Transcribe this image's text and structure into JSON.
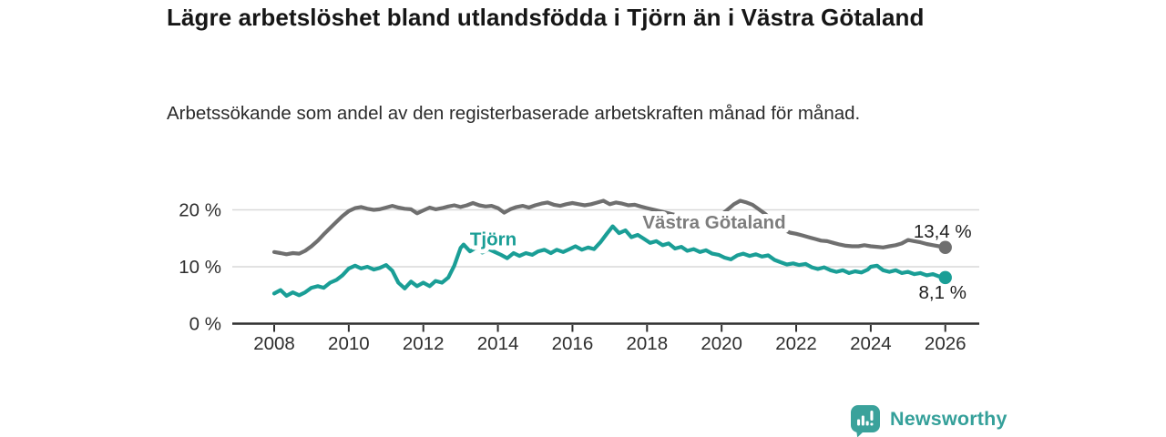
{
  "header": {
    "title": "Lägre arbetslöshet bland utlandsfödda i Tjörn än i Västra Götaland",
    "subtitle": "Arbetssökande som andel av den registerbaserade arbetskraften månad för månad."
  },
  "footer": {
    "brand": "Newsworthy",
    "logo_icon": "bar-chart-speech-bubble-icon"
  },
  "colors": {
    "tjorn_line": "#1a9e96",
    "vastra_line": "#6f6f6f",
    "vastra_label": "#7d7d7d",
    "axis": "#2e2e2e",
    "gridline": "#d9d9d9",
    "tick_text": "#2e2e2e",
    "value_label_text": "#1f1f1f",
    "halo": "#ffffff",
    "brand_teal": "#3aa29b"
  },
  "chart_data": {
    "type": "line",
    "title": "Lägre arbetslöshet bland utlandsfödda i Tjörn än i Västra Götaland",
    "subtitle": "Arbetssökande som andel av den registerbaserade arbetskraften månad för månad.",
    "xlabel": "",
    "ylabel": "",
    "grid": "horizontal",
    "xlim": [
      2006.9,
      2027.0
    ],
    "ylim": [
      0,
      22.8
    ],
    "x_ticks": [
      2008,
      2010,
      2012,
      2014,
      2016,
      2018,
      2020,
      2022,
      2024,
      2026
    ],
    "y_ticks": [
      {
        "value": 0,
        "label": "0 %"
      },
      {
        "value": 10,
        "label": "10 %"
      },
      {
        "value": 20,
        "label": "20 %"
      }
    ],
    "series": [
      {
        "name": "Västra Götaland",
        "slug": "vastra-gotaland",
        "color": "#6f6f6f",
        "end_value": 13.4,
        "end_label": "13,4 %",
        "points": [
          [
            2008.0,
            12.6
          ],
          [
            2008.17,
            12.4
          ],
          [
            2008.33,
            12.2
          ],
          [
            2008.5,
            12.4
          ],
          [
            2008.67,
            12.3
          ],
          [
            2008.83,
            12.8
          ],
          [
            2009.0,
            13.6
          ],
          [
            2009.17,
            14.6
          ],
          [
            2009.33,
            15.7
          ],
          [
            2009.5,
            16.8
          ],
          [
            2009.67,
            17.9
          ],
          [
            2009.83,
            18.9
          ],
          [
            2010.0,
            19.8
          ],
          [
            2010.17,
            20.3
          ],
          [
            2010.33,
            20.5
          ],
          [
            2010.5,
            20.2
          ],
          [
            2010.67,
            20.0
          ],
          [
            2010.83,
            20.1
          ],
          [
            2011.0,
            20.4
          ],
          [
            2011.17,
            20.7
          ],
          [
            2011.33,
            20.4
          ],
          [
            2011.5,
            20.2
          ],
          [
            2011.67,
            20.1
          ],
          [
            2011.83,
            19.4
          ],
          [
            2012.0,
            19.9
          ],
          [
            2012.17,
            20.4
          ],
          [
            2012.33,
            20.1
          ],
          [
            2012.5,
            20.3
          ],
          [
            2012.67,
            20.6
          ],
          [
            2012.83,
            20.8
          ],
          [
            2013.0,
            20.5
          ],
          [
            2013.17,
            20.8
          ],
          [
            2013.33,
            21.2
          ],
          [
            2013.5,
            20.8
          ],
          [
            2013.67,
            20.6
          ],
          [
            2013.83,
            20.7
          ],
          [
            2014.0,
            20.3
          ],
          [
            2014.17,
            19.5
          ],
          [
            2014.33,
            20.1
          ],
          [
            2014.5,
            20.5
          ],
          [
            2014.67,
            20.7
          ],
          [
            2014.83,
            20.4
          ],
          [
            2015.0,
            20.8
          ],
          [
            2015.17,
            21.1
          ],
          [
            2015.33,
            21.3
          ],
          [
            2015.5,
            20.9
          ],
          [
            2015.67,
            20.7
          ],
          [
            2015.83,
            21.0
          ],
          [
            2016.0,
            21.2
          ],
          [
            2016.17,
            21.0
          ],
          [
            2016.33,
            20.8
          ],
          [
            2016.5,
            21.0
          ],
          [
            2016.67,
            21.3
          ],
          [
            2016.83,
            21.6
          ],
          [
            2017.0,
            21.0
          ],
          [
            2017.17,
            21.3
          ],
          [
            2017.33,
            21.1
          ],
          [
            2017.5,
            20.8
          ],
          [
            2017.67,
            20.9
          ],
          [
            2017.83,
            20.6
          ],
          [
            2018.0,
            20.3
          ],
          [
            2018.25,
            19.9
          ],
          [
            2018.5,
            19.5
          ],
          [
            2018.75,
            19.1
          ],
          [
            2019.0,
            18.8
          ],
          [
            2019.25,
            18.5
          ],
          [
            2019.5,
            18.3
          ],
          [
            2019.75,
            18.6
          ],
          [
            2020.0,
            19.2
          ],
          [
            2020.17,
            20.1
          ],
          [
            2020.33,
            21.0
          ],
          [
            2020.5,
            21.6
          ],
          [
            2020.67,
            21.3
          ],
          [
            2020.83,
            20.9
          ],
          [
            2021.0,
            20.1
          ],
          [
            2021.17,
            19.3
          ],
          [
            2021.33,
            18.3
          ],
          [
            2021.5,
            17.2
          ],
          [
            2021.67,
            16.5
          ],
          [
            2021.83,
            16.0
          ],
          [
            2022.0,
            15.8
          ],
          [
            2022.17,
            15.5
          ],
          [
            2022.33,
            15.2
          ],
          [
            2022.5,
            14.9
          ],
          [
            2022.67,
            14.6
          ],
          [
            2022.83,
            14.5
          ],
          [
            2023.0,
            14.2
          ],
          [
            2023.17,
            13.9
          ],
          [
            2023.33,
            13.7
          ],
          [
            2023.5,
            13.6
          ],
          [
            2023.67,
            13.6
          ],
          [
            2023.83,
            13.8
          ],
          [
            2024.0,
            13.6
          ],
          [
            2024.17,
            13.5
          ],
          [
            2024.33,
            13.4
          ],
          [
            2024.5,
            13.6
          ],
          [
            2024.67,
            13.8
          ],
          [
            2024.83,
            14.1
          ],
          [
            2025.0,
            14.7
          ],
          [
            2025.17,
            14.5
          ],
          [
            2025.33,
            14.3
          ],
          [
            2025.5,
            14.0
          ],
          [
            2025.67,
            13.8
          ],
          [
            2025.83,
            13.6
          ],
          [
            2026.0,
            13.4
          ]
        ]
      },
      {
        "name": "Tjörn",
        "slug": "tjorn",
        "color": "#1a9e96",
        "end_value": 8.1,
        "end_label": "8,1 %",
        "points": [
          [
            2008.0,
            5.3
          ],
          [
            2008.17,
            5.9
          ],
          [
            2008.33,
            4.9
          ],
          [
            2008.5,
            5.5
          ],
          [
            2008.67,
            5.0
          ],
          [
            2008.83,
            5.5
          ],
          [
            2009.0,
            6.3
          ],
          [
            2009.17,
            6.6
          ],
          [
            2009.33,
            6.3
          ],
          [
            2009.5,
            7.2
          ],
          [
            2009.67,
            7.7
          ],
          [
            2009.83,
            8.5
          ],
          [
            2010.0,
            9.7
          ],
          [
            2010.17,
            10.2
          ],
          [
            2010.33,
            9.7
          ],
          [
            2010.5,
            10.0
          ],
          [
            2010.67,
            9.5
          ],
          [
            2010.83,
            9.8
          ],
          [
            2011.0,
            10.3
          ],
          [
            2011.17,
            9.3
          ],
          [
            2011.33,
            7.2
          ],
          [
            2011.5,
            6.2
          ],
          [
            2011.67,
            7.4
          ],
          [
            2011.83,
            6.6
          ],
          [
            2012.0,
            7.2
          ],
          [
            2012.17,
            6.6
          ],
          [
            2012.33,
            7.5
          ],
          [
            2012.5,
            7.2
          ],
          [
            2012.67,
            8.1
          ],
          [
            2012.83,
            10.2
          ],
          [
            2013.0,
            13.3
          ],
          [
            2013.08,
            13.9
          ],
          [
            2013.25,
            12.7
          ],
          [
            2013.42,
            13.4
          ],
          [
            2013.58,
            12.5
          ],
          [
            2013.75,
            13.1
          ],
          [
            2013.92,
            12.6
          ],
          [
            2014.08,
            12.1
          ],
          [
            2014.25,
            11.5
          ],
          [
            2014.42,
            12.4
          ],
          [
            2014.58,
            11.9
          ],
          [
            2014.75,
            12.4
          ],
          [
            2014.92,
            12.1
          ],
          [
            2015.08,
            12.7
          ],
          [
            2015.25,
            13.0
          ],
          [
            2015.42,
            12.4
          ],
          [
            2015.58,
            13.0
          ],
          [
            2015.75,
            12.6
          ],
          [
            2015.92,
            13.1
          ],
          [
            2016.08,
            13.6
          ],
          [
            2016.25,
            13.0
          ],
          [
            2016.42,
            13.4
          ],
          [
            2016.58,
            13.1
          ],
          [
            2016.75,
            14.3
          ],
          [
            2016.92,
            15.8
          ],
          [
            2017.08,
            17.1
          ],
          [
            2017.25,
            15.9
          ],
          [
            2017.42,
            16.4
          ],
          [
            2017.58,
            15.2
          ],
          [
            2017.75,
            15.6
          ],
          [
            2017.92,
            14.9
          ],
          [
            2018.08,
            14.2
          ],
          [
            2018.25,
            14.5
          ],
          [
            2018.42,
            13.8
          ],
          [
            2018.58,
            14.1
          ],
          [
            2018.75,
            13.2
          ],
          [
            2018.92,
            13.5
          ],
          [
            2019.08,
            12.8
          ],
          [
            2019.25,
            13.1
          ],
          [
            2019.42,
            12.6
          ],
          [
            2019.58,
            12.9
          ],
          [
            2019.75,
            12.3
          ],
          [
            2019.92,
            12.1
          ],
          [
            2020.08,
            11.6
          ],
          [
            2020.25,
            11.3
          ],
          [
            2020.42,
            12.0
          ],
          [
            2020.58,
            12.3
          ],
          [
            2020.75,
            11.9
          ],
          [
            2020.92,
            12.2
          ],
          [
            2021.08,
            11.8
          ],
          [
            2021.25,
            12.0
          ],
          [
            2021.42,
            11.2
          ],
          [
            2021.58,
            10.8
          ],
          [
            2021.75,
            10.4
          ],
          [
            2021.92,
            10.6
          ],
          [
            2022.08,
            10.3
          ],
          [
            2022.25,
            10.5
          ],
          [
            2022.42,
            9.9
          ],
          [
            2022.58,
            9.6
          ],
          [
            2022.75,
            9.9
          ],
          [
            2022.92,
            9.4
          ],
          [
            2023.08,
            9.1
          ],
          [
            2023.25,
            9.4
          ],
          [
            2023.42,
            8.9
          ],
          [
            2023.58,
            9.2
          ],
          [
            2023.75,
            9.0
          ],
          [
            2023.92,
            9.5
          ],
          [
            2024.0,
            10.0
          ],
          [
            2024.17,
            10.2
          ],
          [
            2024.33,
            9.4
          ],
          [
            2024.5,
            9.1
          ],
          [
            2024.67,
            9.4
          ],
          [
            2024.83,
            8.9
          ],
          [
            2025.0,
            9.1
          ],
          [
            2025.17,
            8.7
          ],
          [
            2025.33,
            8.9
          ],
          [
            2025.5,
            8.5
          ],
          [
            2025.67,
            8.7
          ],
          [
            2025.83,
            8.3
          ],
          [
            2026.0,
            8.1
          ]
        ]
      }
    ],
    "annotations": [
      {
        "text": "Tjörn",
        "slug": "tjorn",
        "x": 2013.25,
        "y": 13.76,
        "color": "#1a9e96"
      },
      {
        "text": "Västra Götaland",
        "slug": "vastra-gotaland",
        "x": 2017.88,
        "y": 16.72,
        "color": "#7d7d7d"
      }
    ],
    "legend_position": "inline-labels"
  }
}
